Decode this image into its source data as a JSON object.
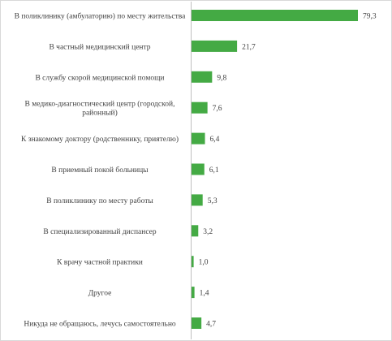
{
  "chart_data": {
    "type": "bar",
    "orientation": "horizontal",
    "title": "",
    "xlabel": "",
    "ylabel": "",
    "xlim": [
      0,
      80
    ],
    "grid": false,
    "legend": "none",
    "bar_color": "#44AA44",
    "axis_color": "#BFBFBF",
    "categories": [
      [
        "В поликлинику (амбулаторию) по месту жительства"
      ],
      [
        "В частный медицинский центр"
      ],
      [
        "В службу скорой медицинской помощи"
      ],
      [
        "В медико-диагностический центр (городской,",
        "районный)"
      ],
      [
        "К знакомому доктору (родственнику, приятелю)"
      ],
      [
        "В приемный покой больницы"
      ],
      [
        "В поликлинику по месту работы"
      ],
      [
        "В специализированный диспансер"
      ],
      [
        "К врачу частной практики"
      ],
      [
        "Другое"
      ],
      [
        "Никуда не обращаюсь, лечусь самостоятельно"
      ]
    ],
    "values": [
      79.3,
      21.7,
      9.8,
      7.6,
      6.4,
      6.1,
      5.3,
      3.2,
      1.0,
      1.4,
      4.7
    ],
    "value_labels": [
      "79,3",
      "21,7",
      "9,8",
      "7,6",
      "6,4",
      "6,1",
      "5,3",
      "3,2",
      "1,0",
      "1,4",
      "4,7"
    ]
  }
}
